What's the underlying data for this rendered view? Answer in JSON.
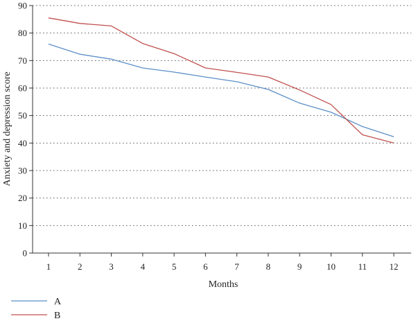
{
  "chart_data": {
    "type": "line",
    "xlabel": "Months",
    "ylabel": "Anxiety and depression score",
    "x": [
      1,
      2,
      3,
      4,
      5,
      6,
      7,
      8,
      9,
      10,
      11,
      12
    ],
    "ylim": [
      0,
      90
    ],
    "yticks": [
      0,
      10,
      20,
      30,
      40,
      50,
      60,
      70,
      80,
      90
    ],
    "grid": "horizontal-dotted",
    "legend_position": "bottom-left",
    "series": [
      {
        "name": "A",
        "color": "#5b8fc7",
        "values": [
          76,
          72.3,
          70.5,
          67.3,
          65.8,
          64,
          62.3,
          59.5,
          54.5,
          51.2,
          46,
          42.3
        ]
      },
      {
        "name": "B",
        "color": "#c0504d",
        "values": [
          85.5,
          83.5,
          82.6,
          76.2,
          72.5,
          67.3,
          65.7,
          64,
          59.3,
          54,
          43,
          40
        ]
      }
    ]
  }
}
